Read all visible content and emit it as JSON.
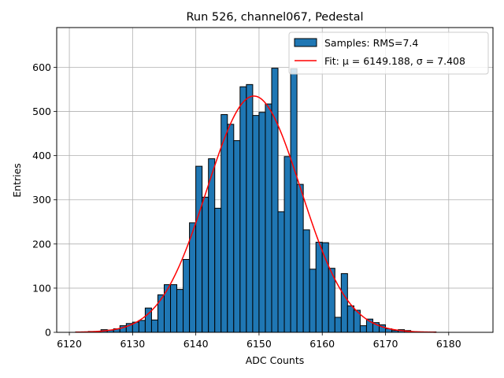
{
  "chart_data": {
    "type": "bar",
    "title": "Run 526, channel067, Pedestal",
    "xlabel": "ADC Counts",
    "ylabel": "Entries",
    "xlim": [
      6118,
      6187
    ],
    "ylim": [
      0,
      690
    ],
    "xticks": [
      6120,
      6130,
      6140,
      6150,
      6160,
      6170,
      6180
    ],
    "yticks": [
      0,
      100,
      200,
      300,
      400,
      500,
      600
    ],
    "grid": true,
    "legend_position": "top-right",
    "colors": {
      "bar_fill": "#1f77b4",
      "bar_edge": "#000000",
      "fit_line": "#ff0000",
      "grid": "#b0b0b0"
    },
    "histogram": {
      "name": "Samples: RMS=7.4",
      "bin_edges": [
        6121,
        6122,
        6123,
        6124,
        6125,
        6126,
        6127,
        6128,
        6129,
        6130,
        6131,
        6132,
        6133,
        6134,
        6135,
        6136,
        6137,
        6138,
        6139,
        6140,
        6141,
        6142,
        6143,
        6144,
        6145,
        6146,
        6147,
        6148,
        6149,
        6150,
        6151,
        6152,
        6153,
        6154,
        6155,
        6156,
        6157,
        6158,
        6159,
        6160,
        6161,
        6162,
        6163,
        6164,
        6165,
        6166,
        6167,
        6168,
        6169,
        6170,
        6171,
        6172,
        6173,
        6174,
        6175,
        6176,
        6177,
        6178
      ],
      "counts": [
        1,
        1,
        2,
        1,
        6,
        5,
        8,
        15,
        20,
        23,
        27,
        55,
        28,
        85,
        108,
        108,
        97,
        165,
        248,
        376,
        306,
        393,
        281,
        493,
        471,
        434,
        556,
        561,
        491,
        498,
        517,
        598,
        273,
        398,
        597,
        335,
        232,
        143,
        204,
        203,
        145,
        34,
        133,
        60,
        50,
        15,
        30,
        22,
        17,
        8,
        4,
        6,
        4,
        1,
        1,
        1,
        1
      ]
    },
    "fit": {
      "name": "Fit: μ = 6149.188, σ = 7.408",
      "mu": 6149.188,
      "sigma": 7.408,
      "amplitude": 535,
      "x_range": [
        6121,
        6178
      ]
    }
  }
}
